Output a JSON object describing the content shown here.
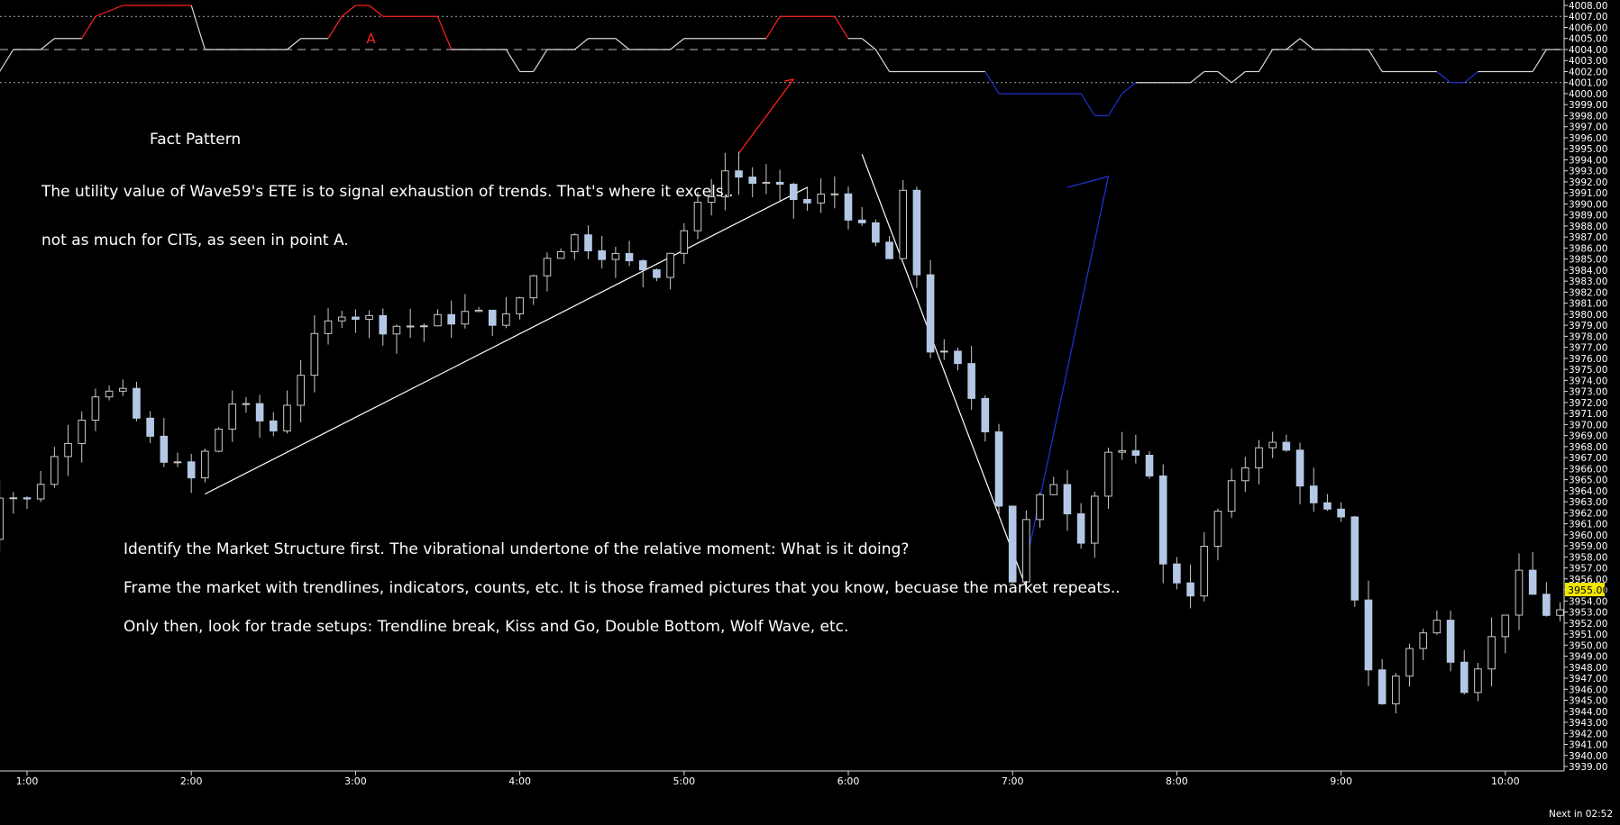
{
  "annotations": {
    "title": "Fact Pattern",
    "line1": "The utility value of Wave59's ETE is to signal exhaustion of trends. That's where it excels..",
    "line2": "not as much for CITs, as seen in point A.",
    "line3": "Identify the Market Structure first. The vibrational undertone of the relative moment:  What is it doing?",
    "line4": "Frame the market with trendlines, indicators, counts, etc.  It is those framed pictures that you know, becuase the market repeats..",
    "line5": "Only then, look for trade setups:  Trendline break, Kiss and Go, Double Bottom, Wolf Wave, etc.",
    "point_label": "A"
  },
  "status": {
    "next_bar": "Next in 02:52",
    "current_price": "3955.00"
  },
  "colors": {
    "background": "#000000",
    "candle_up": "#000000",
    "candle_outline": "#c9c9c9",
    "candle_down": "#b4c8e6",
    "trendline": "#ffffff",
    "indicator_red": "#ff2020",
    "indicator_blue": "#2030d0",
    "price_tag": "#f1e800",
    "grid_dotted": "#aaaaaa"
  },
  "chart_data": {
    "type": "candlestick",
    "x_labels": [
      "1:00",
      "2:00",
      "3:00",
      "4:00",
      "5:00",
      "6:00",
      "7:00",
      "8:00",
      "9:00",
      "10:00"
    ],
    "y_tick_labels": [
      "4008.00",
      "4007.00",
      "4006.00",
      "4005.00",
      "4004.00",
      "4003.00",
      "4002.00",
      "4001.00",
      "4000.00",
      "3999.00",
      "3998.00",
      "3997.00",
      "3996.00",
      "3995.00",
      "3994.00",
      "3993.00",
      "3992.00",
      "3991.00",
      "3990.00",
      "3989.00",
      "3988.00",
      "3987.00",
      "3986.00",
      "3985.00",
      "3984.00",
      "3983.00",
      "3982.00",
      "3981.00",
      "3980.00",
      "3979.00",
      "3978.00",
      "3977.00",
      "3976.00",
      "3975.00",
      "3974.00",
      "3973.00",
      "3972.00",
      "3971.00",
      "3970.00",
      "3969.00",
      "3968.00",
      "3967.00",
      "3966.00",
      "3965.00",
      "3964.00",
      "3963.00",
      "3962.00",
      "3961.00",
      "3960.00",
      "3959.00",
      "3958.00",
      "3957.00",
      "3956.00",
      "3955.00",
      "3954.00",
      "3953.00",
      "3952.00",
      "3951.00",
      "3950.00",
      "3949.00",
      "3948.00",
      "3947.00",
      "3946.00",
      "3945.00",
      "3944.00",
      "3943.00",
      "3942.00",
      "3941.00",
      "3940.00",
      "3939.00"
    ],
    "ylim": [
      3939,
      4008
    ],
    "bar_minutes": 5,
    "start_time": "0:40",
    "end_time": "10:20",
    "anchors": [
      {
        "t": "0:40",
        "p": 3952.0
      },
      {
        "t": "0:55",
        "p": 3964.0
      },
      {
        "t": "1:05",
        "p": 3963.0
      },
      {
        "t": "1:15",
        "p": 3967.0
      },
      {
        "t": "1:30",
        "p": 3973.0
      },
      {
        "t": "1:40",
        "p": 3972.5
      },
      {
        "t": "1:50",
        "p": 3968.5
      },
      {
        "t": "2:00",
        "p": 3966.0
      },
      {
        "t": "2:05",
        "p": 3965.0
      },
      {
        "t": "2:20",
        "p": 3972.0
      },
      {
        "t": "2:35",
        "p": 3969.5
      },
      {
        "t": "2:50",
        "p": 3977.5
      },
      {
        "t": "3:00",
        "p": 3980.5
      },
      {
        "t": "3:15",
        "p": 3979.0
      },
      {
        "t": "3:30",
        "p": 3979.0
      },
      {
        "t": "3:45",
        "p": 3980.0
      },
      {
        "t": "4:00",
        "p": 3979.5
      },
      {
        "t": "4:15",
        "p": 3985.5
      },
      {
        "t": "4:25",
        "p": 3987.0
      },
      {
        "t": "4:45",
        "p": 3984.5
      },
      {
        "t": "4:55",
        "p": 3984.0
      },
      {
        "t": "5:10",
        "p": 3989.5
      },
      {
        "t": "5:20",
        "p": 3993.0
      },
      {
        "t": "5:35",
        "p": 3991.5
      },
      {
        "t": "5:50",
        "p": 3990.0
      },
      {
        "t": "6:00",
        "p": 3991.0
      },
      {
        "t": "6:10",
        "p": 3987.5
      },
      {
        "t": "6:20",
        "p": 3985.0
      },
      {
        "t": "6:25",
        "p": 3990.5
      },
      {
        "t": "6:35",
        "p": 3977.0
      },
      {
        "t": "6:45",
        "p": 3975.0
      },
      {
        "t": "6:55",
        "p": 3970.0
      },
      {
        "t": "7:05",
        "p": 3956.0
      },
      {
        "t": "7:10",
        "p": 3961.0
      },
      {
        "t": "7:20",
        "p": 3965.0
      },
      {
        "t": "7:30",
        "p": 3960.0
      },
      {
        "t": "7:40",
        "p": 3967.5
      },
      {
        "t": "7:55",
        "p": 3966.0
      },
      {
        "t": "8:00",
        "p": 3957.0
      },
      {
        "t": "8:10",
        "p": 3955.0
      },
      {
        "t": "8:20",
        "p": 3962.0
      },
      {
        "t": "8:35",
        "p": 3968.5
      },
      {
        "t": "8:45",
        "p": 3967.5
      },
      {
        "t": "8:55",
        "p": 3962.5
      },
      {
        "t": "9:05",
        "p": 3961.0
      },
      {
        "t": "9:15",
        "p": 3948.0
      },
      {
        "t": "9:20",
        "p": 3944.5
      },
      {
        "t": "9:30",
        "p": 3950.0
      },
      {
        "t": "9:40",
        "p": 3952.0
      },
      {
        "t": "9:50",
        "p": 3946.5
      },
      {
        "t": "10:00",
        "p": 3950.5
      },
      {
        "t": "10:10",
        "p": 3956.0
      },
      {
        "t": "10:20",
        "p": 3953.0
      }
    ],
    "trendlines": [
      {
        "from": {
          "t": "2:05",
          "p": 3963.7
        },
        "to": {
          "t": "5:45",
          "p": 3991.5
        }
      },
      {
        "from": {
          "t": "6:05",
          "p": 3994.5
        },
        "to": {
          "t": "7:05",
          "p": 3955.2
        }
      }
    ],
    "red_projection": {
      "from": {
        "t": "5:20",
        "p": 3994.6
      },
      "to": {
        "t": "5:40",
        "p": 4001.3
      }
    },
    "blue_projection": [
      {
        "t": "7:05",
        "p": 3957.5
      },
      {
        "t": "7:35",
        "p": 3992.5
      },
      {
        "t": "7:20",
        "p": 3991.5
      }
    ],
    "indicator": {
      "description": "ETE oscillator drawn along the top, values on the price scale",
      "mid_level": 4004,
      "upper_band": 4007,
      "lower_band": 4001,
      "points": [
        {
          "t": "0:40",
          "p": 4002
        },
        {
          "t": "0:50",
          "p": 4002
        },
        {
          "t": "0:55",
          "p": 4004
        },
        {
          "t": "1:05",
          "p": 4004
        },
        {
          "t": "1:10",
          "p": 4005
        },
        {
          "t": "1:20",
          "p": 4005
        },
        {
          "t": "1:25",
          "p": 4007
        },
        {
          "t": "1:35",
          "p": 4008
        },
        {
          "t": "1:50",
          "p": 4008
        },
        {
          "t": "2:00",
          "p": 4008
        },
        {
          "t": "2:05",
          "p": 4004
        },
        {
          "t": "2:35",
          "p": 4004
        },
        {
          "t": "2:40",
          "p": 4005
        },
        {
          "t": "2:50",
          "p": 4005
        },
        {
          "t": "2:55",
          "p": 4007
        },
        {
          "t": "3:00",
          "p": 4008
        },
        {
          "t": "3:05",
          "p": 4008
        },
        {
          "t": "3:10",
          "p": 4007
        },
        {
          "t": "3:25",
          "p": 4007
        },
        {
          "t": "3:30",
          "p": 4007
        },
        {
          "t": "3:35",
          "p": 4004
        },
        {
          "t": "3:55",
          "p": 4004
        },
        {
          "t": "4:00",
          "p": 4002
        },
        {
          "t": "4:05",
          "p": 4002
        },
        {
          "t": "4:10",
          "p": 4004
        },
        {
          "t": "4:20",
          "p": 4004
        },
        {
          "t": "4:25",
          "p": 4005
        },
        {
          "t": "4:35",
          "p": 4005
        },
        {
          "t": "4:40",
          "p": 4004
        },
        {
          "t": "4:55",
          "p": 4004
        },
        {
          "t": "5:00",
          "p": 4005
        },
        {
          "t": "5:15",
          "p": 4005
        },
        {
          "t": "5:30",
          "p": 4005
        },
        {
          "t": "5:35",
          "p": 4007
        },
        {
          "t": "5:55",
          "p": 4007
        },
        {
          "t": "6:00",
          "p": 4005
        },
        {
          "t": "6:05",
          "p": 4005
        },
        {
          "t": "6:10",
          "p": 4004
        },
        {
          "t": "6:15",
          "p": 4002
        },
        {
          "t": "6:50",
          "p": 4002
        },
        {
          "t": "6:55",
          "p": 4000
        },
        {
          "t": "7:15",
          "p": 4000
        },
        {
          "t": "7:25",
          "p": 4000
        },
        {
          "t": "7:30",
          "p": 3998
        },
        {
          "t": "7:35",
          "p": 3998
        },
        {
          "t": "7:40",
          "p": 4000
        },
        {
          "t": "7:45",
          "p": 4001
        },
        {
          "t": "8:05",
          "p": 4001
        },
        {
          "t": "8:10",
          "p": 4002
        },
        {
          "t": "8:15",
          "p": 4002
        },
        {
          "t": "8:20",
          "p": 4001
        },
        {
          "t": "8:25",
          "p": 4002
        },
        {
          "t": "8:30",
          "p": 4002
        },
        {
          "t": "8:35",
          "p": 4004
        },
        {
          "t": "8:40",
          "p": 4004
        },
        {
          "t": "8:45",
          "p": 4005
        },
        {
          "t": "8:50",
          "p": 4004
        },
        {
          "t": "9:10",
          "p": 4004
        },
        {
          "t": "9:15",
          "p": 4002
        },
        {
          "t": "9:35",
          "p": 4002
        },
        {
          "t": "9:40",
          "p": 4001
        },
        {
          "t": "9:45",
          "p": 4001
        },
        {
          "t": "9:50",
          "p": 4002
        },
        {
          "t": "10:10",
          "p": 4002
        },
        {
          "t": "10:15",
          "p": 4004
        },
        {
          "t": "10:20",
          "p": 4004
        }
      ],
      "red_segments": [
        [
          "1:20",
          "2:00"
        ],
        [
          "2:50",
          "3:35"
        ],
        [
          "5:30",
          "6:00"
        ]
      ],
      "blue_segments": [
        [
          "6:50",
          "7:45"
        ],
        [
          "9:35",
          "9:50"
        ]
      ],
      "label_A_at": {
        "t": "3:00",
        "p": 4004.8
      }
    }
  }
}
